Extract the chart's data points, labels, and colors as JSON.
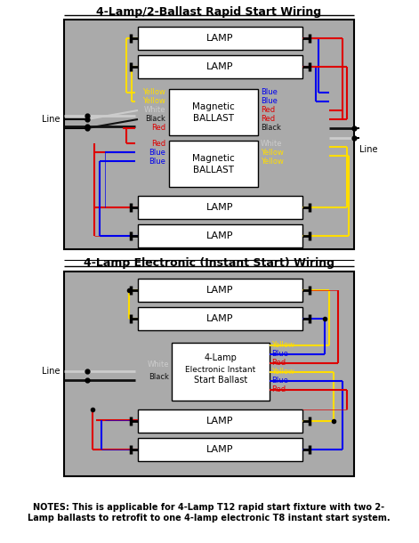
{
  "title1": "4-Lamp/2-Ballast Rapid Start Wiring",
  "title2": "4-Lamp Electronic (Instant Start) Wiring",
  "notes": "NOTES: This is applicable for 4-Lamp T12 rapid start fixture with two 2-\nLamp ballasts to retrofit to one 4-lamp electronic T8 instant start system.",
  "bg_color": "#ffffff",
  "diagram_bg": "#aaaaaa",
  "yellow": "#ffdd00",
  "blue": "#0000ee",
  "red": "#dd0000",
  "black": "#111111",
  "white_wire": "#cccccc"
}
